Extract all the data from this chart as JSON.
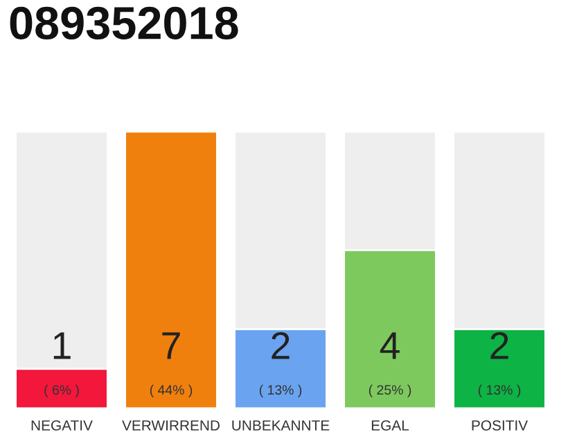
{
  "chart_data": {
    "type": "bar",
    "title": "089352018",
    "categories": [
      "NEGATIV",
      "VERWIRREND",
      "UNBEKANNTE",
      "EGAL",
      "POSITIV"
    ],
    "values": [
      1,
      7,
      2,
      4,
      2
    ],
    "colors": [
      "#f2173b",
      "#f0800e",
      "#6aa3ef",
      "#7dc95e",
      "#0db344"
    ],
    "data_labels": true,
    "annotations": [
      {
        "text": "( 6% )",
        "x": "NEGATIV",
        "y": 0
      },
      {
        "text": "( 44% )",
        "x": "VERWIRREND",
        "y": 0
      },
      {
        "text": "( 13% )",
        "x": "UNBEKANNTE",
        "y": 0
      },
      {
        "text": "( 25% )",
        "x": "EGAL",
        "y": 0
      },
      {
        "text": "( 13% )",
        "x": "POSITIV",
        "y": 0
      }
    ],
    "grid": false,
    "legend": false
  }
}
